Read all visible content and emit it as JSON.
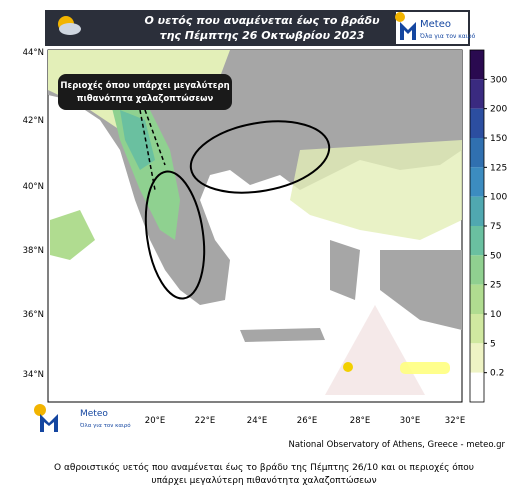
{
  "header": {
    "title_lines": [
      "Ο υετός που αναμένεται έως το βράδυ",
      "της Πέμπτης 26 Οκτωβρίου 2023"
    ]
  },
  "logo": {
    "name": "Meteo",
    "slogan": "Όλα για τον καιρό"
  },
  "annotation": {
    "lines": [
      "Περιοχές όπου υπάρχει μεγαλύτερη",
      "πιθανότητα χαλαζοπτώσεων"
    ]
  },
  "map": {
    "lat_labels": [
      "44°N",
      "42°N",
      "40°N",
      "38°N",
      "36°N",
      "34°N"
    ],
    "lon_labels": [
      "20°E",
      "22°E",
      "24°E",
      "26°E",
      "28°E",
      "30°E",
      "32°E"
    ]
  },
  "colorbar": {
    "ticks": [
      300,
      200,
      150,
      125,
      100,
      75,
      50,
      25,
      10,
      5,
      0.2
    ],
    "colors": [
      "#2a0a50",
      "#3a2a80",
      "#2c4ea0",
      "#3070b0",
      "#3c8cc0",
      "#50a8b0",
      "#6ac0a0",
      "#90d090",
      "#b0dc90",
      "#d0e8a0",
      "#eef3c4",
      "#ffffff"
    ]
  },
  "credit": "National Observatory of Athens, Greece - meteo.gr",
  "caption_lines": [
    "Ο αθροιστικός υετός που αναμένεται έως το βράδυ της Πέμπτης 26/10 και οι περιοχές όπου",
    "υπάρχει μεγαλύτερη πιθανότητα χαλαζοπτώσεων"
  ]
}
